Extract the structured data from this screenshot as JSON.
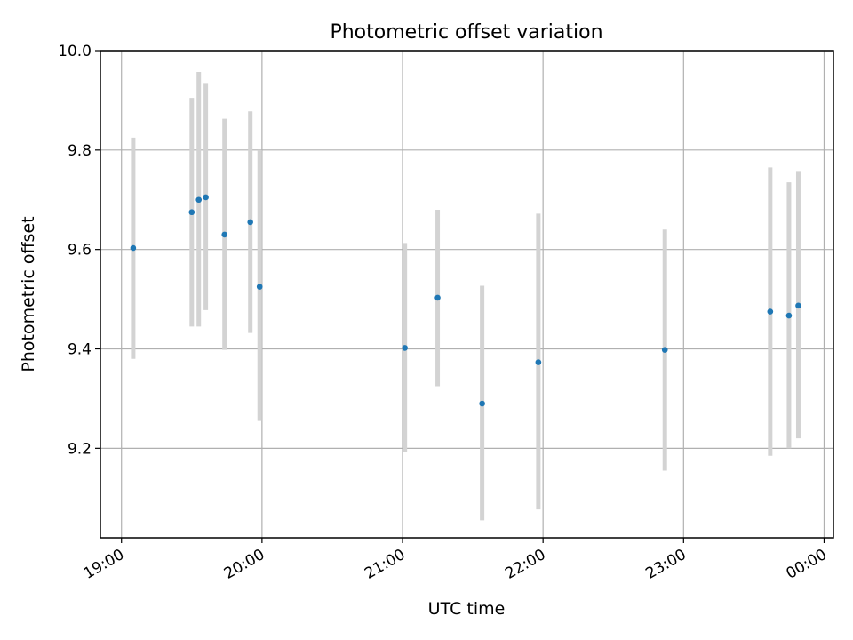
{
  "chart_data": {
    "type": "scatter",
    "title": "Photometric offset variation",
    "xlabel": "UTC time",
    "ylabel": "Photometric offset",
    "x_unit": "UTC hours",
    "xlim": [
      "18:51",
      "00:04"
    ],
    "ylim": [
      9.02,
      10.0
    ],
    "x_ticks": [
      "19:00",
      "20:00",
      "21:00",
      "22:00",
      "23:00",
      "00:00"
    ],
    "y_ticks": [
      "9.2",
      "9.4",
      "9.6",
      "9.8",
      "10.0"
    ],
    "grid": true,
    "legend": "none",
    "colors": {
      "points": "#1f77b4",
      "error_bars": "#d3d3d3",
      "grid": "#b0b0b0",
      "axes": "#000000"
    },
    "points": [
      {
        "time": "19:05",
        "offset": 9.603,
        "ymin": 9.38,
        "ymax": 9.825
      },
      {
        "time": "19:30",
        "offset": 9.675,
        "ymin": 9.445,
        "ymax": 9.905
      },
      {
        "time": "19:33",
        "offset": 9.7,
        "ymin": 9.445,
        "ymax": 9.957
      },
      {
        "time": "19:36",
        "offset": 9.705,
        "ymin": 9.478,
        "ymax": 9.935
      },
      {
        "time": "19:44",
        "offset": 9.63,
        "ymin": 9.398,
        "ymax": 9.863
      },
      {
        "time": "19:55",
        "offset": 9.655,
        "ymin": 9.432,
        "ymax": 9.878
      },
      {
        "time": "19:59",
        "offset": 9.525,
        "ymin": 9.255,
        "ymax": 9.8
      },
      {
        "time": "21:01",
        "offset": 9.402,
        "ymin": 9.192,
        "ymax": 9.613
      },
      {
        "time": "21:15",
        "offset": 9.503,
        "ymin": 9.325,
        "ymax": 9.68
      },
      {
        "time": "21:34",
        "offset": 9.29,
        "ymin": 9.055,
        "ymax": 9.527
      },
      {
        "time": "21:58",
        "offset": 9.373,
        "ymin": 9.077,
        "ymax": 9.672
      },
      {
        "time": "22:52",
        "offset": 9.398,
        "ymin": 9.155,
        "ymax": 9.64
      },
      {
        "time": "23:37",
        "offset": 9.475,
        "ymin": 9.185,
        "ymax": 9.765
      },
      {
        "time": "23:45",
        "offset": 9.467,
        "ymin": 9.2,
        "ymax": 9.735
      },
      {
        "time": "23:49",
        "offset": 9.487,
        "ymin": 9.22,
        "ymax": 9.758
      }
    ]
  }
}
